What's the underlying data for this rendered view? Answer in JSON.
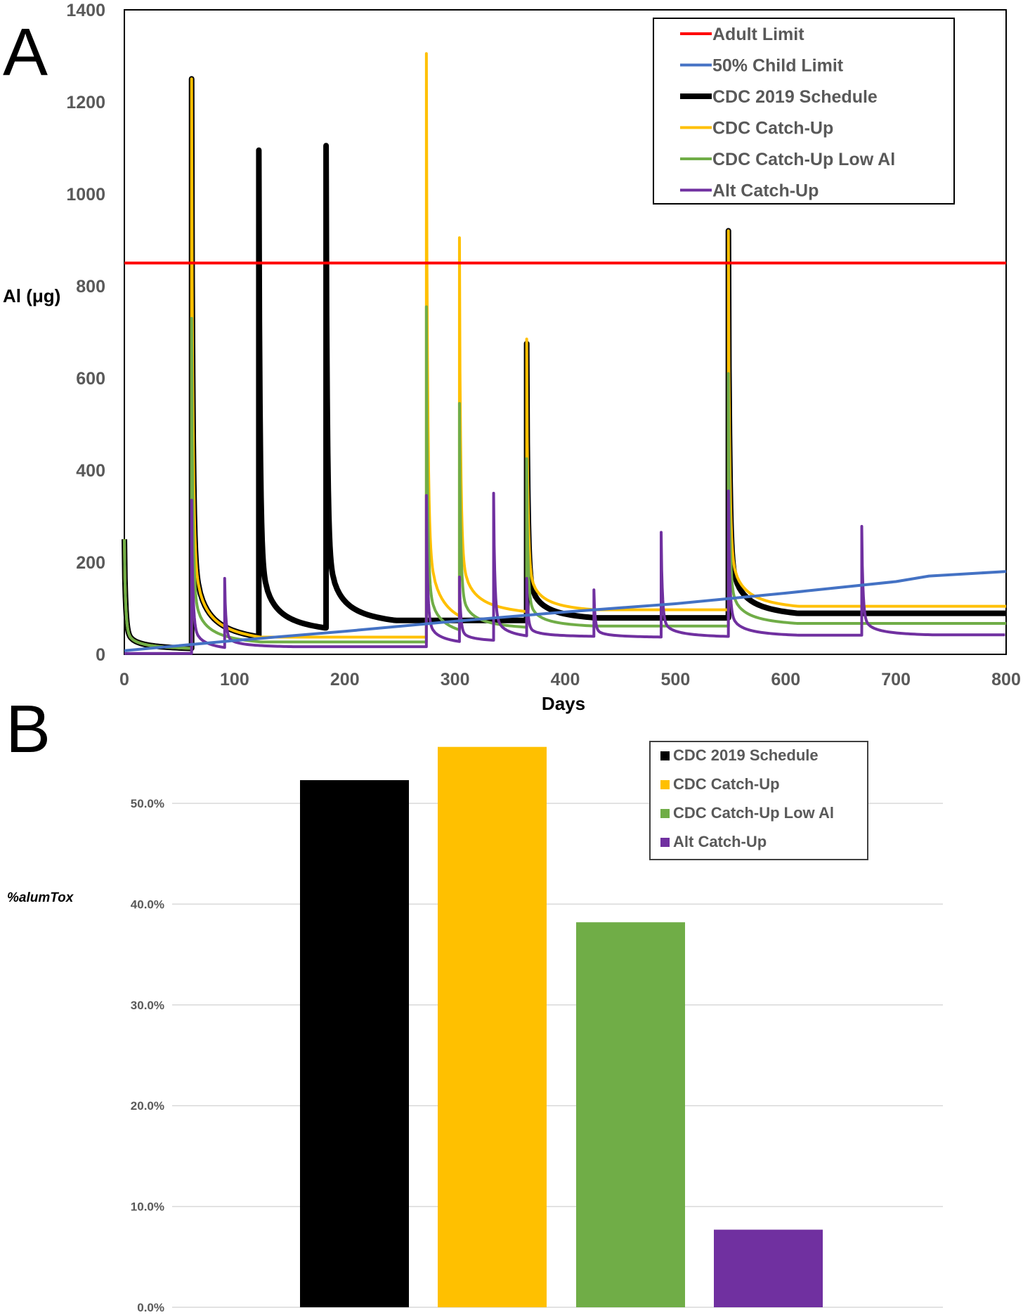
{
  "panels": {
    "a_letter": "A",
    "b_letter": "B"
  },
  "chart_data": [
    {
      "type": "line",
      "panel": "A",
      "xlabel": "Days",
      "ylabel": "Al (μg)",
      "xlim": [
        0,
        800
      ],
      "ylim": [
        0,
        1400
      ],
      "xticks": [
        "0",
        "100",
        "200",
        "300",
        "400",
        "500",
        "600",
        "700",
        "800"
      ],
      "yticks": [
        "0",
        "200",
        "400",
        "600",
        "800",
        "1000",
        "1200",
        "1400"
      ],
      "grid": false,
      "legend_position": "top-right",
      "series": [
        {
          "name": "Adult Limit",
          "color": "#ff0000",
          "points": [
            [
              0,
              850
            ],
            [
              800,
              850
            ]
          ]
        },
        {
          "name": "50% Child Limit",
          "color": "#4472c4",
          "points": [
            [
              0,
              8
            ],
            [
              100,
              30
            ],
            [
              200,
              50
            ],
            [
              300,
              72
            ],
            [
              400,
              92
            ],
            [
              500,
              110
            ],
            [
              600,
              133
            ],
            [
              700,
              158
            ],
            [
              730,
              170
            ],
            [
              800,
              180
            ]
          ]
        },
        {
          "name": "CDC 2019 Schedule",
          "color": "#000000",
          "baseline": 8,
          "doses": [
            [
              0,
              250
            ],
            [
              61,
              1250
            ],
            [
              122,
              1095
            ],
            [
              183,
              1105
            ],
            [
              365,
              675
            ],
            [
              548,
              920
            ]
          ]
        },
        {
          "name": "CDC Catch-Up",
          "color": "#ffc000",
          "baseline": 8,
          "doses": [
            [
              0,
              250
            ],
            [
              61,
              1250
            ],
            [
              274,
              1305
            ],
            [
              304,
              905
            ],
            [
              365,
              685
            ],
            [
              548,
              920
            ]
          ]
        },
        {
          "name": "CDC Catch-Up Low Al",
          "color": "#70ad47",
          "baseline": 8,
          "doses": [
            [
              0,
              250
            ],
            [
              61,
              730
            ],
            [
              274,
              755
            ],
            [
              304,
              545
            ],
            [
              365,
              425
            ],
            [
              548,
              610
            ]
          ]
        },
        {
          "name": "Alt Catch-Up",
          "color": "#7030a0",
          "baseline": 2,
          "doses": [
            [
              61,
              335
            ],
            [
              91,
              165
            ],
            [
              274,
              345
            ],
            [
              304,
              168
            ],
            [
              335,
              350
            ],
            [
              365,
              165
            ],
            [
              426,
              140
            ],
            [
              487,
              265
            ],
            [
              548,
              355
            ],
            [
              669,
              278
            ]
          ]
        }
      ]
    },
    {
      "type": "bar",
      "panel": "B",
      "ylabel": "%alumTox",
      "ylim": [
        0,
        0.55
      ],
      "yticks": [
        "0.0%",
        "10.0%",
        "20.0%",
        "30.0%",
        "40.0%",
        "50.0%"
      ],
      "grid": true,
      "legend_position": "top-right",
      "categories": [
        "CDC 2019 Schedule",
        "CDC Catch-Up",
        "CDC Catch-Up Low Al",
        "Alt Catch-Up"
      ],
      "values": [
        0.523,
        0.556,
        0.382,
        0.077
      ],
      "colors": [
        "#000000",
        "#ffc000",
        "#70ad47",
        "#7030a0"
      ]
    }
  ]
}
